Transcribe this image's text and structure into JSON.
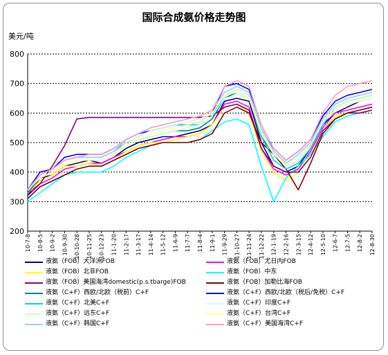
{
  "chart_data": {
    "type": "line",
    "title": "国际合成氨价格走势图",
    "ylabel": "美元/吨",
    "ylim": [
      200,
      800
    ],
    "yticks": [
      200,
      300,
      400,
      500,
      600,
      700,
      800
    ],
    "grid": "horizontal-dashed",
    "legend_placement": "bottom",
    "x": [
      "10-7-8",
      "10-8-5",
      "10-9-2",
      "10-9-30",
      "10-10-28",
      "10-11-25",
      "10-12-23",
      "11-1-20",
      "11-2-17",
      "11-3-17",
      "11-4-14",
      "11-5-12",
      "11-6-9",
      "11-7-7",
      "11-8-4",
      "11-9-1",
      "11-9-29",
      "11-10-27",
      "11-11-24",
      "11-12-22",
      "12-1-19",
      "12-2-16",
      "12-3-15",
      "12-4-12",
      "12-5-10",
      "12-6-7",
      "12-7-5",
      "12-8-2",
      "12-8-30"
    ],
    "series": [
      {
        "name": "液氨（FOB）大洋洲FOB",
        "color": "#000080",
        "values": [
          320,
          380,
          390,
          420,
          430,
          440,
          430,
          450,
          480,
          500,
          510,
          520,
          520,
          530,
          540,
          560,
          640,
          650,
          640,
          500,
          420,
          400,
          420,
          480,
          560,
          600,
          620,
          640,
          650
        ]
      },
      {
        "name": "液氨（FOB）尤日内FOB",
        "color": "#ff00ff",
        "values": [
          330,
          360,
          380,
          410,
          420,
          430,
          430,
          450,
          470,
          490,
          500,
          510,
          520,
          520,
          530,
          560,
          630,
          640,
          620,
          480,
          410,
          390,
          410,
          470,
          550,
          600,
          610,
          620,
          630
        ]
      },
      {
        "name": "液氨（FOB）北非FOB",
        "color": "#ffff00",
        "values": [
          330,
          370,
          390,
          420,
          420,
          430,
          420,
          440,
          470,
          490,
          500,
          500,
          510,
          520,
          530,
          560,
          620,
          630,
          600,
          470,
          400,
          370,
          400,
          460,
          540,
          590,
          600,
          610,
          620
        ]
      },
      {
        "name": "液氨（FOB）中东",
        "color": "#00ffff",
        "values": [
          300,
          330,
          360,
          390,
          400,
          400,
          400,
          420,
          450,
          470,
          490,
          500,
          500,
          500,
          510,
          540,
          570,
          580,
          560,
          420,
          300,
          380,
          420,
          460,
          520,
          570,
          590,
          600,
          610
        ]
      },
      {
        "name": "液氨（FOB）美国海湾domestic(p.s.tbarge)FOB",
        "color": "#800080",
        "values": [
          320,
          360,
          420,
          490,
          580,
          585,
          585,
          585,
          585,
          585,
          585,
          585,
          585,
          585,
          585,
          590,
          620,
          630,
          610,
          480,
          420,
          400,
          400,
          450,
          540,
          580,
          600,
          600,
          610
        ]
      },
      {
        "name": "液氨（FOB）加勒比海FOB",
        "color": "#800000",
        "values": [
          310,
          350,
          370,
          390,
          410,
          420,
          420,
          440,
          460,
          480,
          490,
          500,
          500,
          500,
          510,
          530,
          600,
          620,
          600,
          500,
          460,
          410,
          340,
          430,
          530,
          580,
          600,
          610,
          620
        ]
      },
      {
        "name": "液氨（C+F）西欧/北欧（税前）C+F",
        "color": "#008080",
        "values": [
          330,
          380,
          400,
          430,
          440,
          440,
          440,
          460,
          490,
          510,
          520,
          530,
          540,
          540,
          550,
          580,
          650,
          670,
          650,
          520,
          460,
          420,
          440,
          490,
          570,
          620,
          640,
          650,
          660
        ]
      },
      {
        "name": "液氨（C+F）西欧/北欧（税后/免税）C+F",
        "color": "#0000ff",
        "values": [
          340,
          400,
          410,
          450,
          460,
          460,
          460,
          480,
          510,
          530,
          540,
          550,
          560,
          560,
          570,
          600,
          690,
          700,
          680,
          540,
          480,
          440,
          470,
          510,
          590,
          640,
          660,
          670,
          680
        ]
      },
      {
        "name": "液氨（C+F）北美C+F",
        "color": "#00ccff",
        "values": [
          340,
          390,
          410,
          440,
          450,
          450,
          450,
          470,
          500,
          520,
          540,
          550,
          560,
          560,
          560,
          590,
          660,
          680,
          660,
          520,
          440,
          410,
          430,
          480,
          560,
          620,
          640,
          650,
          660
        ]
      },
      {
        "name": "液氨（C+F）印度C+F",
        "color": "#ccffff",
        "values": [
          340,
          380,
          400,
          430,
          440,
          440,
          440,
          460,
          490,
          510,
          520,
          530,
          540,
          550,
          560,
          590,
          650,
          660,
          650,
          540,
          470,
          430,
          450,
          490,
          570,
          610,
          630,
          640,
          650
        ]
      },
      {
        "name": "液氨（C+F）远东C+F",
        "color": "#ccffcc",
        "values": [
          340,
          380,
          400,
          430,
          440,
          440,
          440,
          460,
          500,
          520,
          540,
          550,
          560,
          570,
          580,
          600,
          660,
          680,
          660,
          540,
          470,
          430,
          450,
          490,
          570,
          620,
          640,
          650,
          660
        ]
      },
      {
        "name": "液氨（C+F）台湾C+F",
        "color": "#ffff99",
        "values": [
          340,
          380,
          400,
          430,
          440,
          440,
          440,
          460,
          490,
          510,
          530,
          540,
          550,
          560,
          570,
          600,
          660,
          670,
          650,
          530,
          460,
          420,
          440,
          490,
          570,
          610,
          630,
          640,
          650
        ]
      },
      {
        "name": "液氨（C+F）韩国C+F",
        "color": "#99ccff",
        "values": [
          340,
          390,
          410,
          440,
          450,
          450,
          450,
          470,
          510,
          530,
          550,
          560,
          570,
          580,
          590,
          610,
          670,
          690,
          670,
          550,
          470,
          430,
          460,
          500,
          580,
          630,
          650,
          660,
          670
        ]
      },
      {
        "name": "液氨（C+F）美国海湾C+F",
        "color": "#ff99cc",
        "values": [
          340,
          390,
          410,
          440,
          450,
          460,
          460,
          480,
          510,
          530,
          550,
          560,
          570,
          580,
          590,
          610,
          690,
          710,
          690,
          560,
          480,
          440,
          470,
          510,
          600,
          660,
          690,
          700,
          710
        ]
      }
    ]
  }
}
